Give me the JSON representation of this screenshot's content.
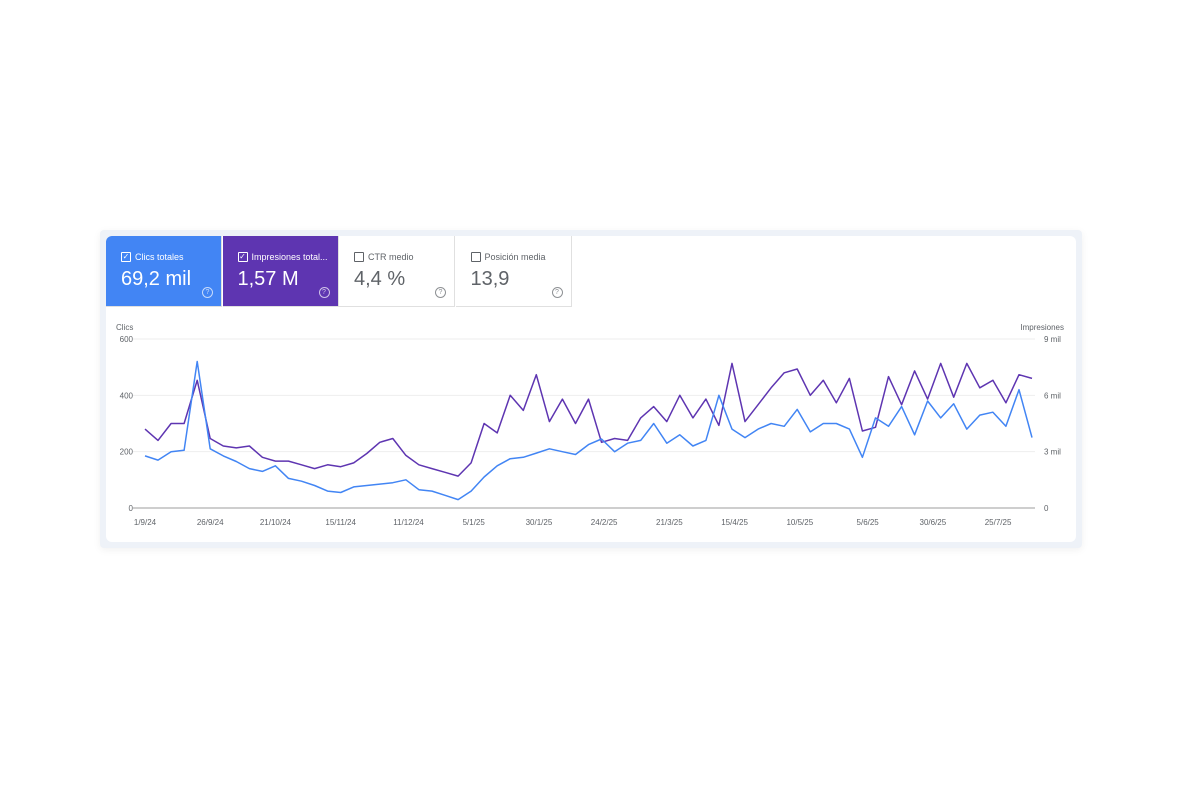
{
  "metrics": [
    {
      "label": "Clics totales",
      "value": "69,2 mil",
      "checked": true,
      "color": "#4285f4"
    },
    {
      "label": "Impresiones total...",
      "value": "1,57 M",
      "checked": true,
      "color": "#5e35b1"
    },
    {
      "label": "CTR medio",
      "value": "4,4 %",
      "checked": false
    },
    {
      "label": "Posición media",
      "value": "13,9",
      "checked": false
    }
  ],
  "chart_data": {
    "type": "line",
    "ylabel_left": "Clics",
    "ylabel_right": "Impresiones",
    "ylim_left": [
      0,
      600
    ],
    "ylim_right": [
      0,
      9000
    ],
    "yticks_left": [
      "0",
      "200",
      "400",
      "600"
    ],
    "yticks_right": [
      "0",
      "3 mil",
      "6 mil",
      "9 mil"
    ],
    "xticks": [
      "1/9/24",
      "26/9/24",
      "21/10/24",
      "15/11/24",
      "11/12/24",
      "5/1/25",
      "30/1/25",
      "24/2/25",
      "21/3/25",
      "15/4/25",
      "10/5/25",
      "5/6/25",
      "30/6/25",
      "25/7/25"
    ],
    "xtick_dates": [
      "2024-09-01",
      "2024-09-26",
      "2024-10-21",
      "2024-11-15",
      "2024-12-11",
      "2025-01-05",
      "2025-01-30",
      "2025-02-24",
      "2025-03-21",
      "2025-04-15",
      "2025-05-10",
      "2025-06-05",
      "2025-06-30",
      "2025-07-25"
    ],
    "xlim": [
      "2024-09-01",
      "2025-08-07"
    ],
    "grid": true,
    "x": [
      "2024-09-01",
      "2024-09-06",
      "2024-09-11",
      "2024-09-16",
      "2024-09-21",
      "2024-09-26",
      "2024-10-01",
      "2024-10-06",
      "2024-10-11",
      "2024-10-16",
      "2024-10-21",
      "2024-10-26",
      "2024-10-31",
      "2024-11-05",
      "2024-11-10",
      "2024-11-15",
      "2024-11-20",
      "2024-11-25",
      "2024-11-30",
      "2024-12-05",
      "2024-12-10",
      "2024-12-15",
      "2024-12-20",
      "2024-12-25",
      "2024-12-30",
      "2025-01-04",
      "2025-01-09",
      "2025-01-14",
      "2025-01-19",
      "2025-01-24",
      "2025-01-29",
      "2025-02-03",
      "2025-02-08",
      "2025-02-13",
      "2025-02-18",
      "2025-02-23",
      "2025-02-28",
      "2025-03-05",
      "2025-03-10",
      "2025-03-15",
      "2025-03-20",
      "2025-03-25",
      "2025-03-30",
      "2025-04-04",
      "2025-04-09",
      "2025-04-14",
      "2025-04-19",
      "2025-04-24",
      "2025-04-29",
      "2025-05-04",
      "2025-05-09",
      "2025-05-14",
      "2025-05-19",
      "2025-05-24",
      "2025-05-29",
      "2025-06-03",
      "2025-06-08",
      "2025-06-13",
      "2025-06-18",
      "2025-06-23",
      "2025-06-28",
      "2025-07-03",
      "2025-07-08",
      "2025-07-13",
      "2025-07-18",
      "2025-07-23",
      "2025-07-28",
      "2025-08-02",
      "2025-08-07"
    ],
    "series": [
      {
        "name": "Clics",
        "axis": "left",
        "color": "#4285f4",
        "values": [
          185,
          170,
          200,
          205,
          520,
          210,
          185,
          165,
          140,
          130,
          150,
          105,
          95,
          80,
          60,
          55,
          75,
          80,
          85,
          90,
          100,
          65,
          60,
          45,
          30,
          60,
          110,
          150,
          175,
          180,
          195,
          210,
          200,
          190,
          225,
          245,
          200,
          230,
          240,
          300,
          230,
          260,
          220,
          240,
          400,
          280,
          250,
          280,
          300,
          290,
          350,
          270,
          300,
          300,
          280,
          180,
          320,
          290,
          360,
          260,
          380,
          320,
          370,
          280,
          330,
          340,
          290,
          420,
          250
        ]
      },
      {
        "name": "Impresiones",
        "axis": "right",
        "color": "#5e35b1",
        "values": [
          4200,
          3600,
          4500,
          4500,
          6800,
          3700,
          3300,
          3200,
          3300,
          2700,
          2500,
          2500,
          2300,
          2100,
          2300,
          2200,
          2400,
          2900,
          3500,
          3700,
          2800,
          2300,
          2100,
          1900,
          1700,
          2400,
          4500,
          4000,
          6000,
          5200,
          7100,
          4600,
          5800,
          4500,
          5800,
          3500,
          3700,
          3600,
          4800,
          5400,
          4600,
          6000,
          4800,
          5800,
          4400,
          7700,
          4600,
          5500,
          6400,
          7200,
          7400,
          6000,
          6800,
          5600,
          6900,
          4100,
          4300,
          7000,
          5500,
          7300,
          5800,
          7700,
          5900,
          7700,
          6400,
          6800,
          5600,
          7100,
          6900
        ]
      }
    ]
  }
}
